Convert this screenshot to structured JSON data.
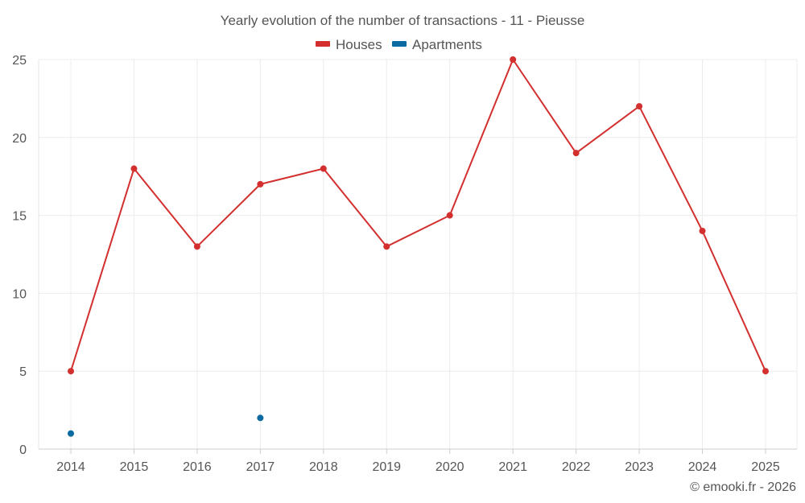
{
  "chart_data": {
    "type": "line",
    "title": "Yearly evolution of the number of transactions - 11 - Pieusse",
    "xlabel": "",
    "ylabel": "",
    "categories": [
      "2014",
      "2015",
      "2016",
      "2017",
      "2018",
      "2019",
      "2020",
      "2021",
      "2022",
      "2023",
      "2024",
      "2025"
    ],
    "ylim": [
      0,
      25
    ],
    "yticks": [
      0,
      5,
      10,
      15,
      20,
      25
    ],
    "grid": true,
    "legend_position": "top-center",
    "series": [
      {
        "name": "Houses",
        "color": "#d32f2f",
        "line": true,
        "values": [
          5,
          18,
          13,
          17,
          18,
          13,
          15,
          25,
          19,
          22,
          14,
          5
        ]
      },
      {
        "name": "Apartments",
        "color": "#0b6aa2",
        "line": false,
        "values": [
          1,
          null,
          null,
          2,
          null,
          null,
          null,
          null,
          null,
          null,
          null,
          null
        ]
      }
    ]
  },
  "credit": "© emooki.fr - 2026"
}
